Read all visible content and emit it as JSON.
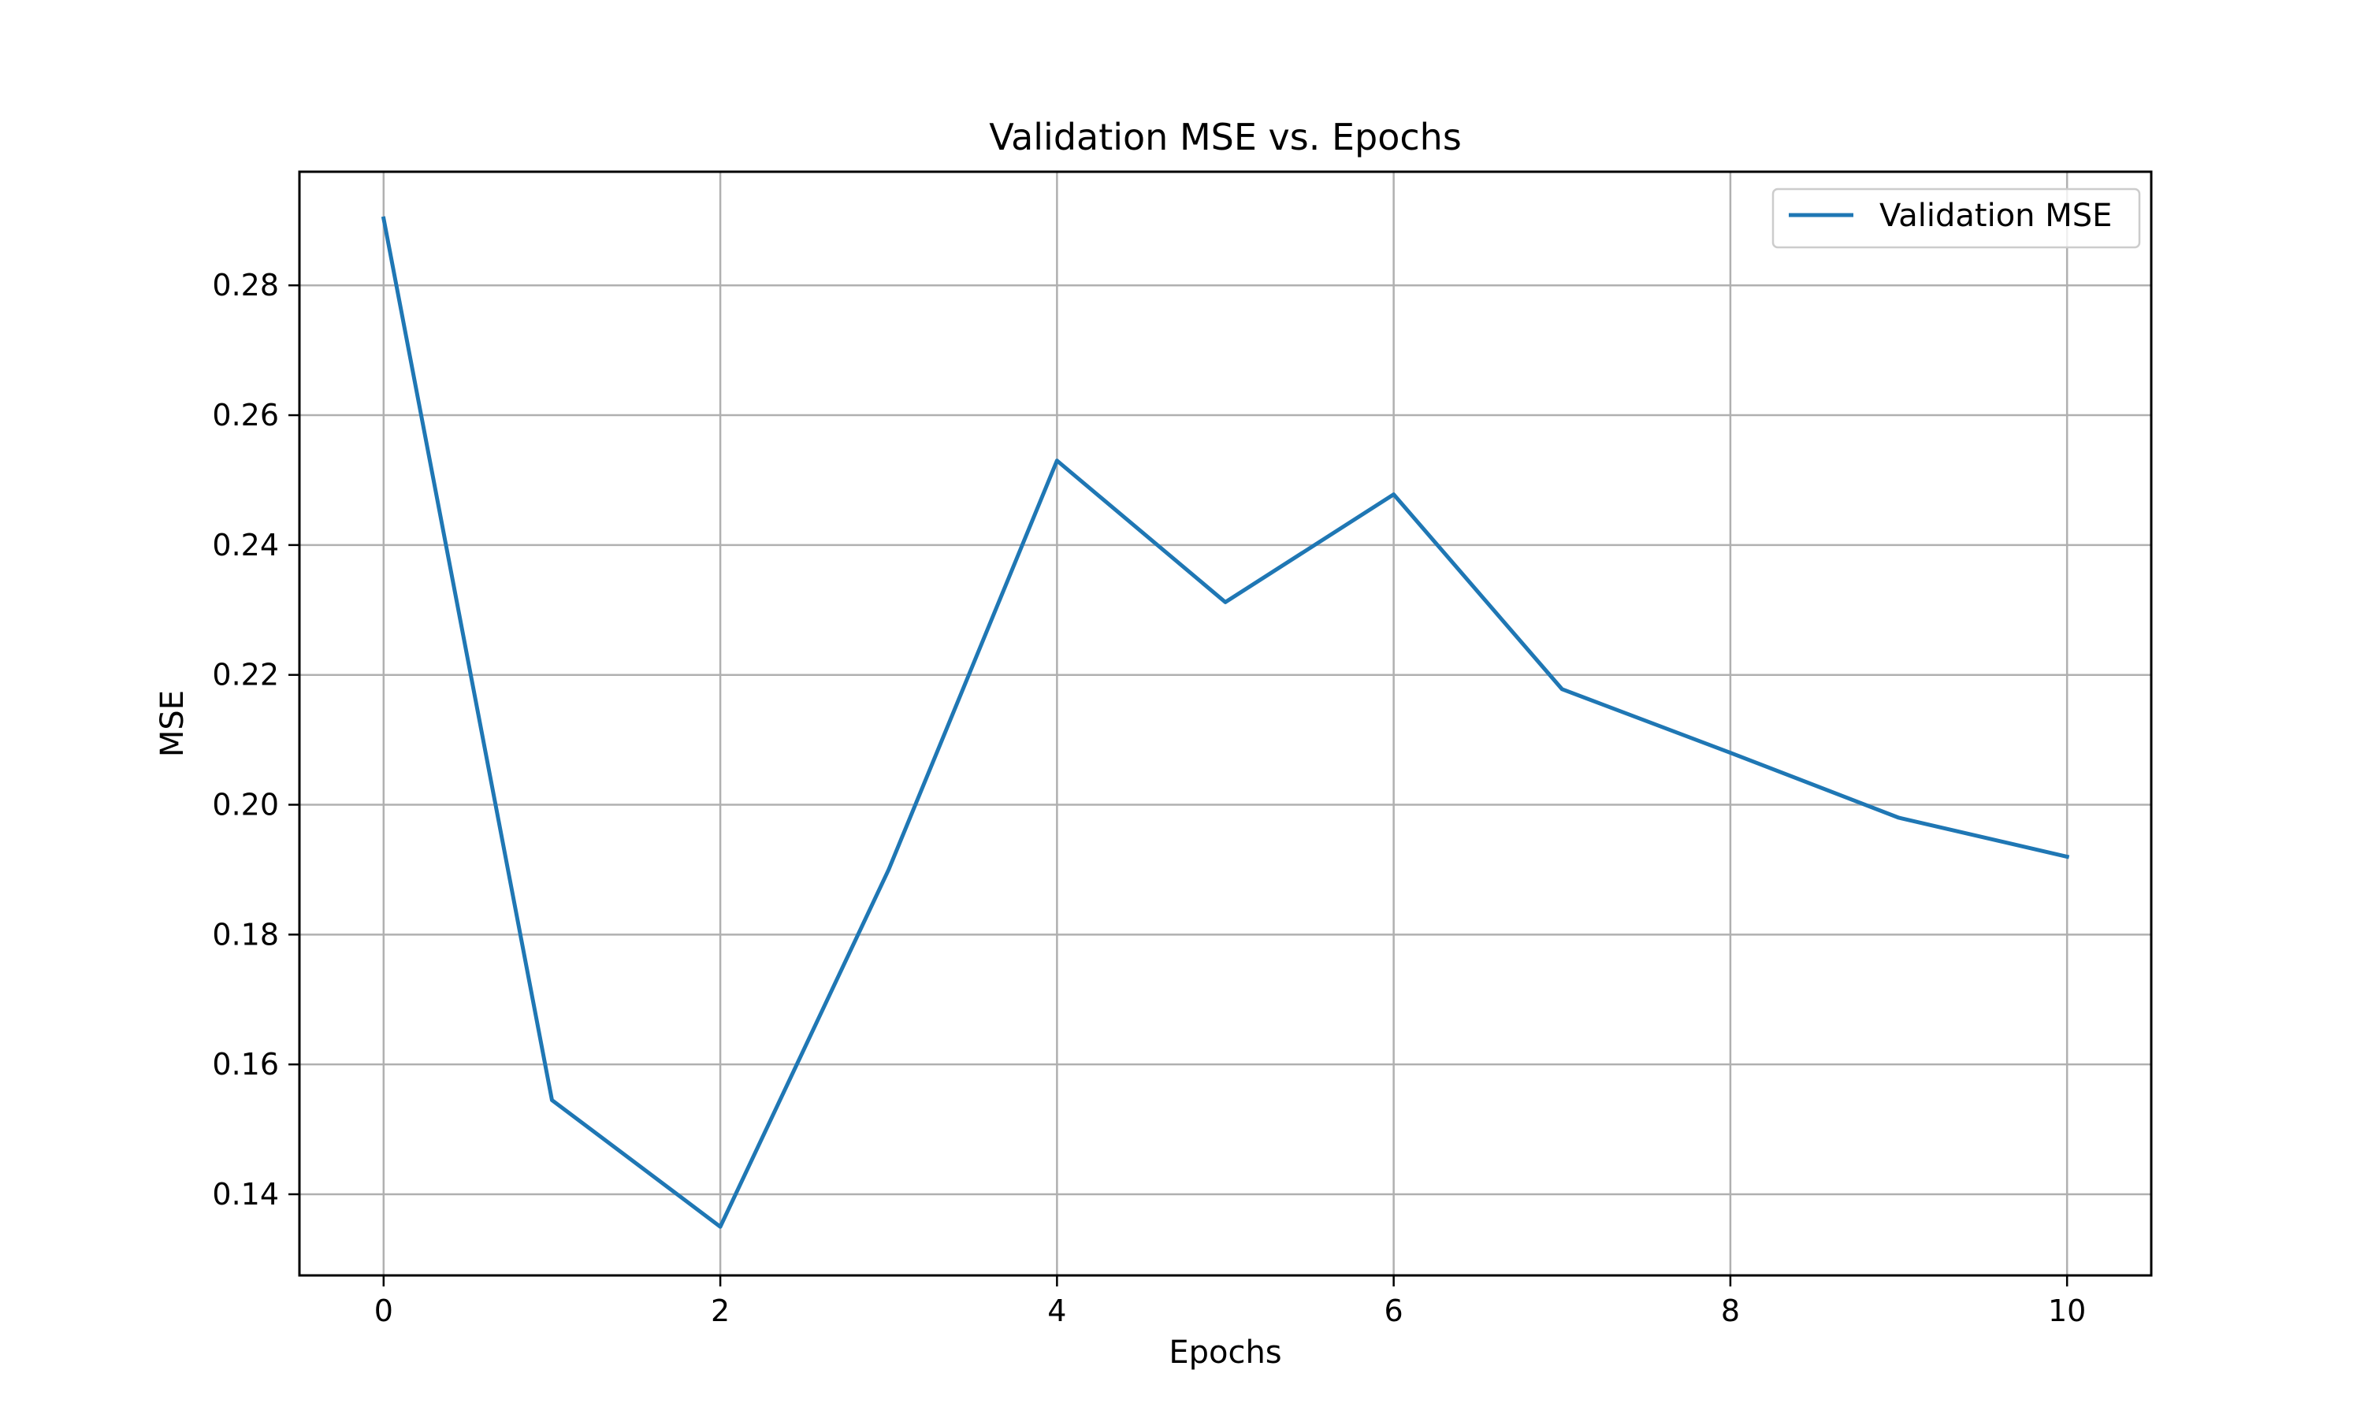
{
  "chart_data": {
    "type": "line",
    "title": "Validation MSE vs. Epochs",
    "xlabel": "Epochs",
    "ylabel": "MSE",
    "xlim": [
      -0.5,
      10.5
    ],
    "ylim": [
      0.1275,
      0.2975
    ],
    "xticks": [
      0,
      2,
      4,
      6,
      8,
      10
    ],
    "yticks": [
      0.14,
      0.16,
      0.18,
      0.2,
      0.22,
      0.24,
      0.26,
      0.28
    ],
    "xtick_labels": [
      "0",
      "2",
      "4",
      "6",
      "8",
      "10"
    ],
    "ytick_labels": [
      "0.14",
      "0.16",
      "0.18",
      "0.20",
      "0.22",
      "0.24",
      "0.26",
      "0.28"
    ],
    "grid": true,
    "legend_position": "top-right",
    "x": [
      0,
      1,
      2,
      3,
      4,
      5,
      6,
      7,
      8,
      9,
      10
    ],
    "series": [
      {
        "name": "Validation MSE",
        "color": "#1f77b4",
        "values": [
          0.2903,
          0.1545,
          0.135,
          0.19,
          0.253,
          0.2312,
          0.2478,
          0.2178,
          0.208,
          0.198,
          0.192
        ]
      }
    ]
  }
}
